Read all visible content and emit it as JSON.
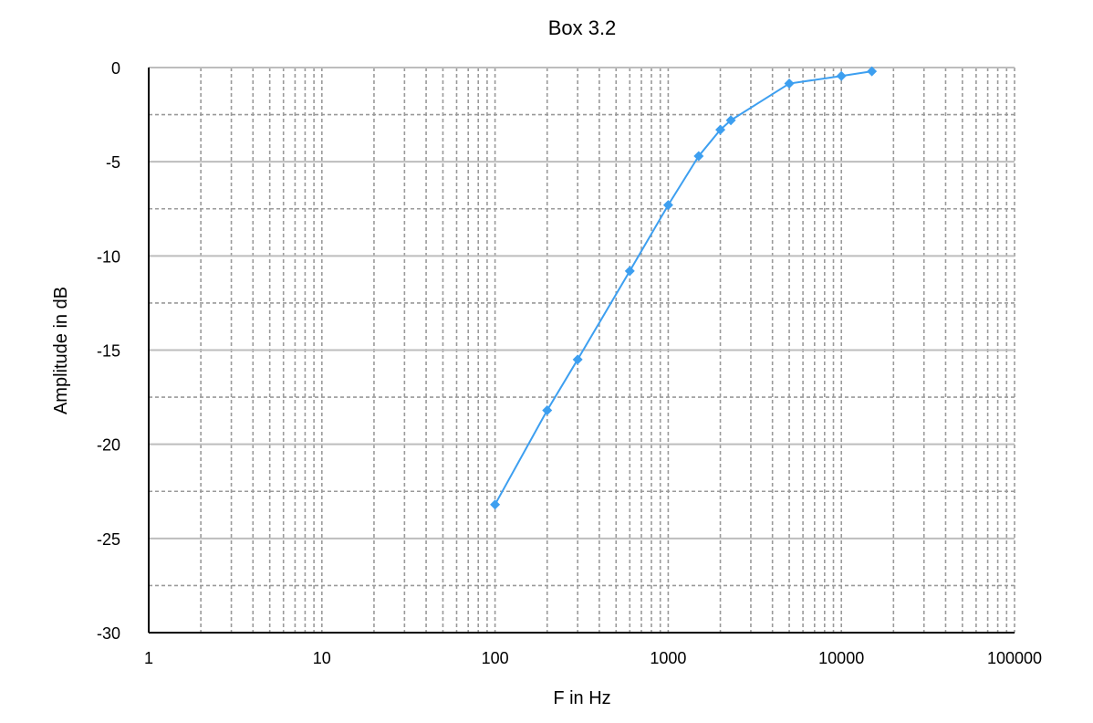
{
  "chart_data": {
    "type": "line",
    "title": "Box 3.2",
    "xlabel": "F in Hz",
    "ylabel": "Amplitude in dB",
    "x_scale": "log",
    "xlim": [
      1,
      100000
    ],
    "ylim": [
      -30,
      0
    ],
    "x_ticks": [
      1,
      10,
      100,
      1000,
      10000,
      100000
    ],
    "x_tick_labels": [
      "1",
      "10",
      "100",
      "1000",
      "10000",
      "100000"
    ],
    "y_ticks": [
      0,
      -5,
      -10,
      -15,
      -20,
      -25,
      -30
    ],
    "y_tick_labels": [
      "0",
      "-5",
      "-10",
      "-15",
      "-20",
      "-25",
      "-30"
    ],
    "y_minor_step": 2.5,
    "grid": true,
    "legend": "none",
    "series": [
      {
        "color": "#3d9ff0",
        "marker": "diamond",
        "x": [
          100,
          200,
          300,
          600,
          1000,
          1500,
          2000,
          2300,
          5000,
          10000,
          15000
        ],
        "y": [
          -23.2,
          -18.2,
          -15.5,
          -10.8,
          -7.3,
          -4.7,
          -3.3,
          -2.8,
          -0.85,
          -0.45,
          -0.2
        ]
      }
    ],
    "colors": {
      "major_grid": "#bdbdbd",
      "minor_grid": "#9a9a9a",
      "axis": "#000000"
    }
  }
}
